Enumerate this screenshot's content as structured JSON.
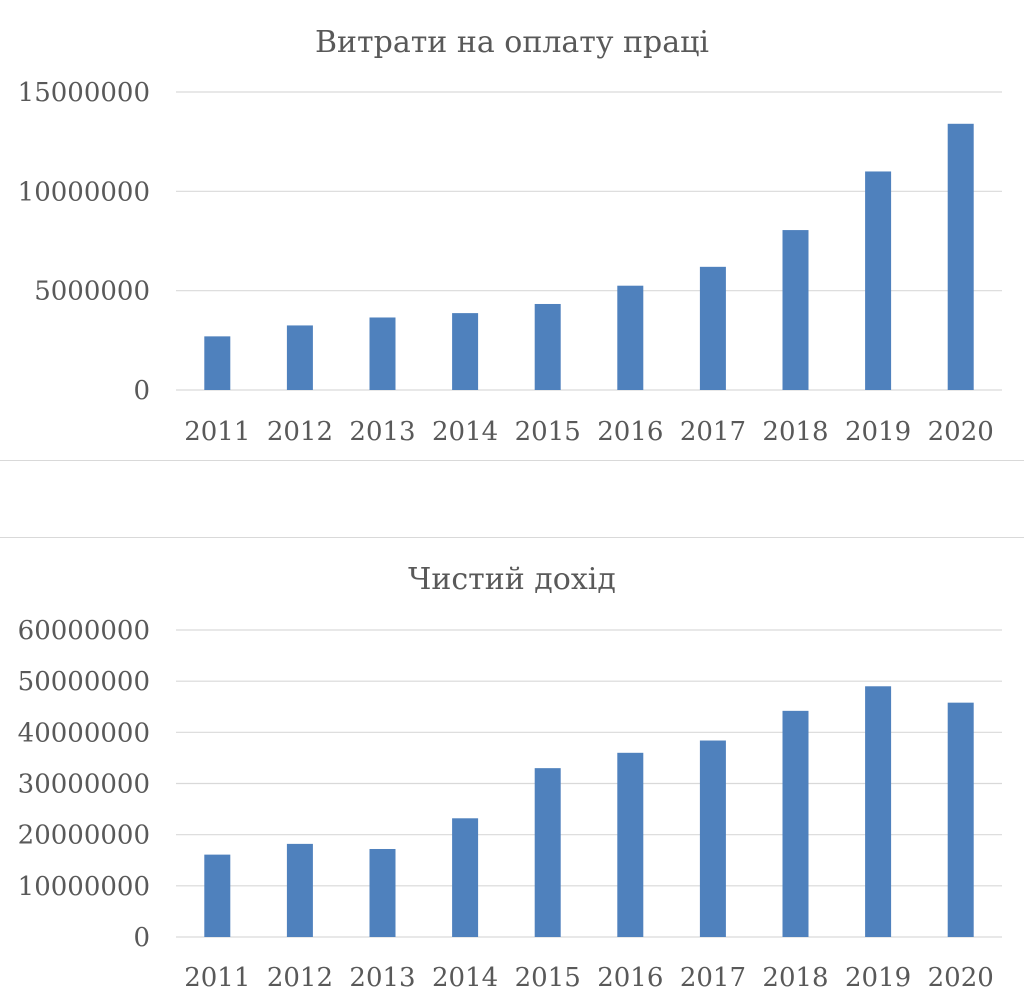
{
  "chart_data": [
    {
      "type": "bar",
      "title": "Витрати на оплату праці",
      "categories": [
        "2011",
        "2012",
        "2013",
        "2014",
        "2015",
        "2016",
        "2017",
        "2018",
        "2019",
        "2020"
      ],
      "values": [
        2700000,
        3250000,
        3650000,
        3870000,
        4330000,
        5250000,
        6200000,
        8050000,
        11000000,
        13400000
      ],
      "yticks": [
        "0",
        "5000000",
        "10000000",
        "15000000"
      ],
      "ylim": [
        0,
        15000000
      ],
      "grid": true,
      "bar_color": "#4f81bd"
    },
    {
      "type": "bar",
      "title": "Чистий дохід",
      "categories": [
        "2011",
        "2012",
        "2013",
        "2014",
        "2015",
        "2016",
        "2017",
        "2018",
        "2019",
        "2020"
      ],
      "values": [
        16100000,
        18200000,
        17200000,
        23200000,
        33000000,
        36000000,
        38400000,
        44200000,
        49000000,
        45800000
      ],
      "yticks": [
        "0",
        "10000000",
        "20000000",
        "30000000",
        "40000000",
        "50000000",
        "60000000"
      ],
      "ylim": [
        0,
        60000000
      ],
      "grid": true,
      "bar_color": "#4f81bd"
    }
  ]
}
